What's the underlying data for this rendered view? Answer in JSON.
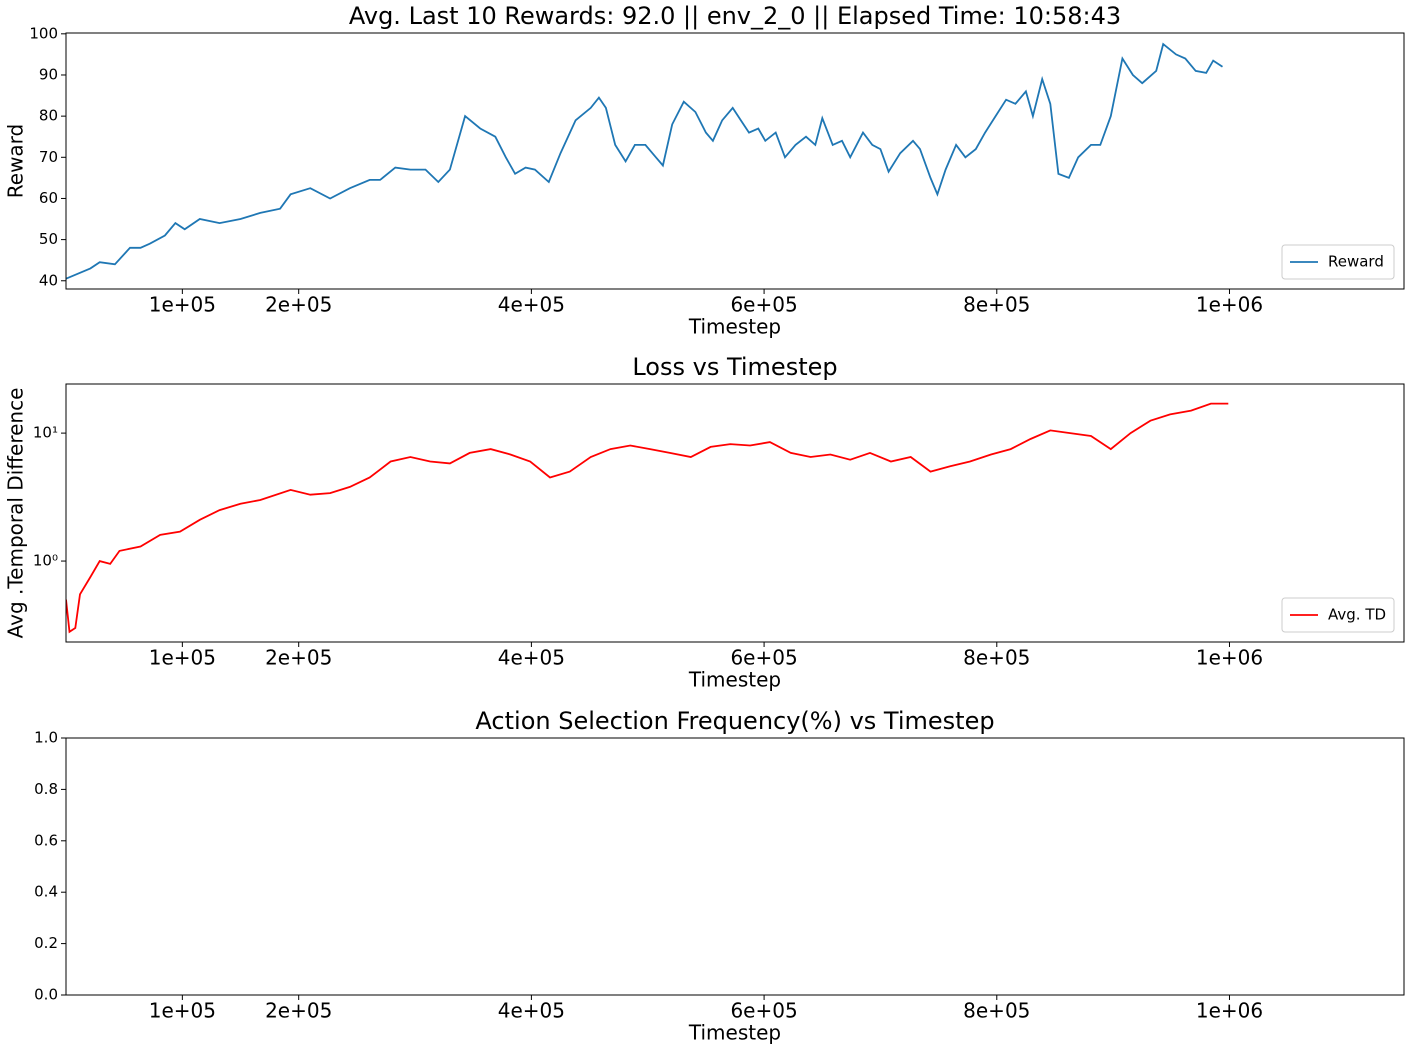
{
  "chart_data": [
    {
      "type": "line",
      "title": "Avg. Last 10 Rewards: 92.0 || env_2_0 || Elapsed Time: 10:58:43",
      "xlabel": "Timestep",
      "ylabel": "Reward",
      "xlim": [
        0,
        1150000
      ],
      "xticks": [
        {
          "value": 100000,
          "label": "1e+05"
        },
        {
          "value": 200000,
          "label": "2e+05"
        },
        {
          "value": 400000,
          "label": "4e+05"
        },
        {
          "value": 600000,
          "label": "6e+05"
        },
        {
          "value": 800000,
          "label": "8e+05"
        },
        {
          "value": 1000000,
          "label": "1e+06"
        }
      ],
      "ylim": [
        38,
        100.2
      ],
      "yticks": [
        40,
        50,
        60,
        70,
        80,
        90,
        100
      ],
      "legend": "lower right",
      "series": [
        {
          "name": "Reward",
          "color": "#1f77b4",
          "x": [
            0,
            21000,
            29000,
            42000,
            55000,
            64000,
            72000,
            85000,
            94000,
            102000,
            115000,
            132000,
            150000,
            167000,
            184000,
            193000,
            210000,
            227000,
            244000,
            261000,
            270000,
            283000,
            296000,
            309000,
            320000,
            330000,
            343000,
            356000,
            369000,
            378000,
            386000,
            395000,
            403000,
            415000,
            425000,
            438000,
            451000,
            458000,
            464000,
            472000,
            481000,
            489000,
            498000,
            507000,
            513000,
            521000,
            531000,
            541000,
            550000,
            556000,
            564000,
            573000,
            580000,
            587000,
            595000,
            601000,
            610000,
            618000,
            627000,
            636000,
            644000,
            650000,
            659000,
            667000,
            674000,
            685000,
            693000,
            700000,
            707000,
            717000,
            728000,
            734000,
            743000,
            749000,
            756000,
            765000,
            773000,
            782000,
            790000,
            799000,
            808000,
            816000,
            825000,
            831000,
            839000,
            846000,
            853000,
            862000,
            870000,
            881000,
            889000,
            898000,
            908000,
            917000,
            925000,
            937000,
            943000,
            954000,
            962000,
            971000,
            980000,
            986000,
            994000
          ],
          "values": [
            40.5,
            43,
            44.5,
            44,
            48,
            48,
            49,
            51,
            54,
            52.5,
            55,
            54,
            55,
            56.5,
            57.5,
            61,
            62.5,
            60,
            62.5,
            64.5,
            64.5,
            67.5,
            67,
            67,
            64,
            67,
            80,
            77,
            75,
            70,
            66,
            67.5,
            67,
            64,
            71,
            79,
            82,
            84.5,
            82,
            73,
            69,
            73,
            73,
            70,
            68,
            78,
            83.5,
            81,
            76,
            74,
            79,
            82,
            79,
            76,
            77,
            74,
            76,
            70,
            73,
            75,
            73,
            79.5,
            73,
            74,
            70,
            76,
            73,
            72,
            66.5,
            71,
            74,
            72,
            65,
            61,
            67,
            73,
            70,
            72,
            76,
            80,
            84,
            83,
            86,
            80,
            89,
            83,
            66,
            65,
            70,
            73,
            73,
            80,
            94,
            90,
            88,
            91,
            97.5,
            95,
            94,
            91,
            90.5,
            93.5,
            92
          ]
        }
      ]
    },
    {
      "type": "line",
      "title": "Loss vs Timestep",
      "xlabel": "Timestep",
      "ylabel": "Avg .Temporal Difference",
      "yscale": "log",
      "xlim": [
        0,
        1150000
      ],
      "xticks": [
        {
          "value": 100000,
          "label": "1e+05"
        },
        {
          "value": 200000,
          "label": "2e+05"
        },
        {
          "value": 400000,
          "label": "4e+05"
        },
        {
          "value": 600000,
          "label": "6e+05"
        },
        {
          "value": 800000,
          "label": "8e+05"
        },
        {
          "value": 1000000,
          "label": "1e+06"
        }
      ],
      "ylim": [
        0.233,
        24.2
      ],
      "yticks": [
        {
          "value": 1,
          "label": "10⁰"
        },
        {
          "value": 10,
          "label": "10¹"
        }
      ],
      "legend": "lower right",
      "series": [
        {
          "name": "Avg. TD",
          "color": "#ff0000",
          "x": [
            0,
            3000,
            8000,
            12000,
            21000,
            29000,
            38000,
            46000,
            64000,
            81000,
            98000,
            115000,
            132000,
            150000,
            167000,
            193000,
            210000,
            227000,
            244000,
            261000,
            279000,
            296000,
            313000,
            330000,
            347000,
            365000,
            382000,
            399000,
            416000,
            433000,
            451000,
            468000,
            485000,
            502000,
            519000,
            537000,
            554000,
            571000,
            588000,
            605000,
            623000,
            640000,
            657000,
            674000,
            691000,
            709000,
            726000,
            743000,
            760000,
            777000,
            795000,
            812000,
            829000,
            846000,
            863000,
            881000,
            898000,
            915000,
            932000,
            949000,
            967000,
            984000,
            999000
          ],
          "values": [
            0.5,
            0.28,
            0.3,
            0.55,
            0.75,
            1.0,
            0.95,
            1.2,
            1.3,
            1.6,
            1.7,
            2.1,
            2.5,
            2.8,
            3.0,
            3.6,
            3.3,
            3.4,
            3.8,
            4.5,
            6.0,
            6.5,
            6.0,
            5.8,
            7.0,
            7.5,
            6.8,
            6.0,
            4.5,
            5.0,
            6.5,
            7.5,
            8.0,
            7.5,
            7.0,
            6.5,
            7.8,
            8.2,
            8.0,
            8.5,
            7.0,
            6.5,
            6.8,
            6.2,
            7.0,
            6.0,
            6.5,
            5.0,
            5.5,
            6.0,
            6.8,
            7.5,
            9.0,
            10.5,
            10,
            9.5,
            7.5,
            10,
            12.5,
            14,
            15,
            17,
            17
          ]
        }
      ]
    },
    {
      "type": "line",
      "title": "Action Selection Frequency(%) vs Timestep",
      "xlabel": "Timestep",
      "xlim": [
        0,
        1150000
      ],
      "xticks": [
        {
          "value": 100000,
          "label": "1e+05"
        },
        {
          "value": 200000,
          "label": "2e+05"
        },
        {
          "value": 400000,
          "label": "4e+05"
        },
        {
          "value": 600000,
          "label": "6e+05"
        },
        {
          "value": 800000,
          "label": "8e+05"
        },
        {
          "value": 1000000,
          "label": "1e+06"
        }
      ],
      "ylim": [
        0,
        1
      ],
      "yticks": [
        {
          "value": 0,
          "label": "0.0"
        },
        {
          "value": 0.2,
          "label": "0.2"
        },
        {
          "value": 0.4,
          "label": "0.4"
        },
        {
          "value": 0.6,
          "label": "0.6"
        },
        {
          "value": 0.8,
          "label": "0.8"
        },
        {
          "value": 1,
          "label": "1.0"
        }
      ]
    }
  ]
}
